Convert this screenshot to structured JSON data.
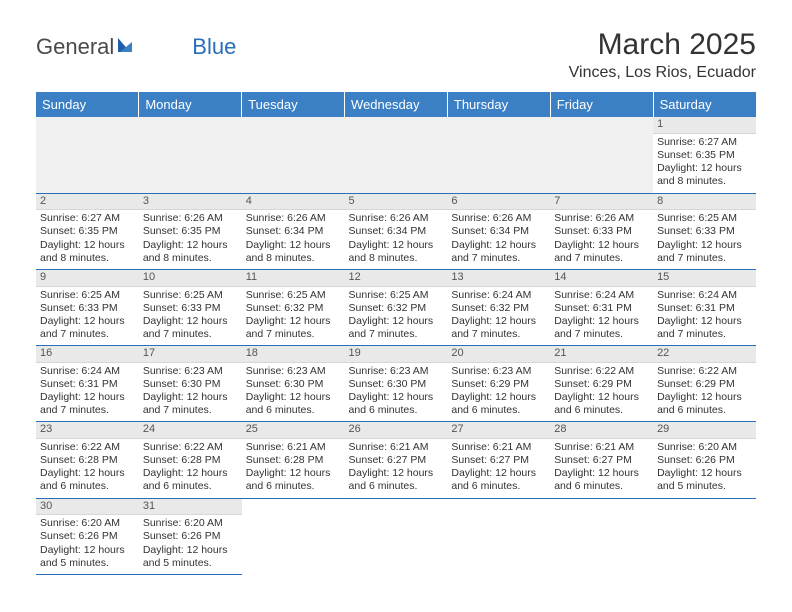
{
  "logo": {
    "text_a": "General",
    "text_b": "Blue"
  },
  "title": "March 2025",
  "location": "Vinces, Los Rios, Ecuador",
  "colors": {
    "header_bg": "#3b7fc4",
    "header_text": "#ffffff",
    "rule": "#2a6db8",
    "daynum_bg": "#e9e9e9",
    "text": "#333333"
  },
  "day_headers": [
    "Sunday",
    "Monday",
    "Tuesday",
    "Wednesday",
    "Thursday",
    "Friday",
    "Saturday"
  ],
  "leading_blanks": 6,
  "days": [
    {
      "n": 1,
      "sunrise": "6:27 AM",
      "sunset": "6:35 PM",
      "daylight": "12 hours and 8 minutes."
    },
    {
      "n": 2,
      "sunrise": "6:27 AM",
      "sunset": "6:35 PM",
      "daylight": "12 hours and 8 minutes."
    },
    {
      "n": 3,
      "sunrise": "6:26 AM",
      "sunset": "6:35 PM",
      "daylight": "12 hours and 8 minutes."
    },
    {
      "n": 4,
      "sunrise": "6:26 AM",
      "sunset": "6:34 PM",
      "daylight": "12 hours and 8 minutes."
    },
    {
      "n": 5,
      "sunrise": "6:26 AM",
      "sunset": "6:34 PM",
      "daylight": "12 hours and 8 minutes."
    },
    {
      "n": 6,
      "sunrise": "6:26 AM",
      "sunset": "6:34 PM",
      "daylight": "12 hours and 7 minutes."
    },
    {
      "n": 7,
      "sunrise": "6:26 AM",
      "sunset": "6:33 PM",
      "daylight": "12 hours and 7 minutes."
    },
    {
      "n": 8,
      "sunrise": "6:25 AM",
      "sunset": "6:33 PM",
      "daylight": "12 hours and 7 minutes."
    },
    {
      "n": 9,
      "sunrise": "6:25 AM",
      "sunset": "6:33 PM",
      "daylight": "12 hours and 7 minutes."
    },
    {
      "n": 10,
      "sunrise": "6:25 AM",
      "sunset": "6:33 PM",
      "daylight": "12 hours and 7 minutes."
    },
    {
      "n": 11,
      "sunrise": "6:25 AM",
      "sunset": "6:32 PM",
      "daylight": "12 hours and 7 minutes."
    },
    {
      "n": 12,
      "sunrise": "6:25 AM",
      "sunset": "6:32 PM",
      "daylight": "12 hours and 7 minutes."
    },
    {
      "n": 13,
      "sunrise": "6:24 AM",
      "sunset": "6:32 PM",
      "daylight": "12 hours and 7 minutes."
    },
    {
      "n": 14,
      "sunrise": "6:24 AM",
      "sunset": "6:31 PM",
      "daylight": "12 hours and 7 minutes."
    },
    {
      "n": 15,
      "sunrise": "6:24 AM",
      "sunset": "6:31 PM",
      "daylight": "12 hours and 7 minutes."
    },
    {
      "n": 16,
      "sunrise": "6:24 AM",
      "sunset": "6:31 PM",
      "daylight": "12 hours and 7 minutes."
    },
    {
      "n": 17,
      "sunrise": "6:23 AM",
      "sunset": "6:30 PM",
      "daylight": "12 hours and 7 minutes."
    },
    {
      "n": 18,
      "sunrise": "6:23 AM",
      "sunset": "6:30 PM",
      "daylight": "12 hours and 6 minutes."
    },
    {
      "n": 19,
      "sunrise": "6:23 AM",
      "sunset": "6:30 PM",
      "daylight": "12 hours and 6 minutes."
    },
    {
      "n": 20,
      "sunrise": "6:23 AM",
      "sunset": "6:29 PM",
      "daylight": "12 hours and 6 minutes."
    },
    {
      "n": 21,
      "sunrise": "6:22 AM",
      "sunset": "6:29 PM",
      "daylight": "12 hours and 6 minutes."
    },
    {
      "n": 22,
      "sunrise": "6:22 AM",
      "sunset": "6:29 PM",
      "daylight": "12 hours and 6 minutes."
    },
    {
      "n": 23,
      "sunrise": "6:22 AM",
      "sunset": "6:28 PM",
      "daylight": "12 hours and 6 minutes."
    },
    {
      "n": 24,
      "sunrise": "6:22 AM",
      "sunset": "6:28 PM",
      "daylight": "12 hours and 6 minutes."
    },
    {
      "n": 25,
      "sunrise": "6:21 AM",
      "sunset": "6:28 PM",
      "daylight": "12 hours and 6 minutes."
    },
    {
      "n": 26,
      "sunrise": "6:21 AM",
      "sunset": "6:27 PM",
      "daylight": "12 hours and 6 minutes."
    },
    {
      "n": 27,
      "sunrise": "6:21 AM",
      "sunset": "6:27 PM",
      "daylight": "12 hours and 6 minutes."
    },
    {
      "n": 28,
      "sunrise": "6:21 AM",
      "sunset": "6:27 PM",
      "daylight": "12 hours and 6 minutes."
    },
    {
      "n": 29,
      "sunrise": "6:20 AM",
      "sunset": "6:26 PM",
      "daylight": "12 hours and 5 minutes."
    },
    {
      "n": 30,
      "sunrise": "6:20 AM",
      "sunset": "6:26 PM",
      "daylight": "12 hours and 5 minutes."
    },
    {
      "n": 31,
      "sunrise": "6:20 AM",
      "sunset": "6:26 PM",
      "daylight": "12 hours and 5 minutes."
    }
  ],
  "labels": {
    "sunrise": "Sunrise:",
    "sunset": "Sunset:",
    "daylight": "Daylight:"
  }
}
